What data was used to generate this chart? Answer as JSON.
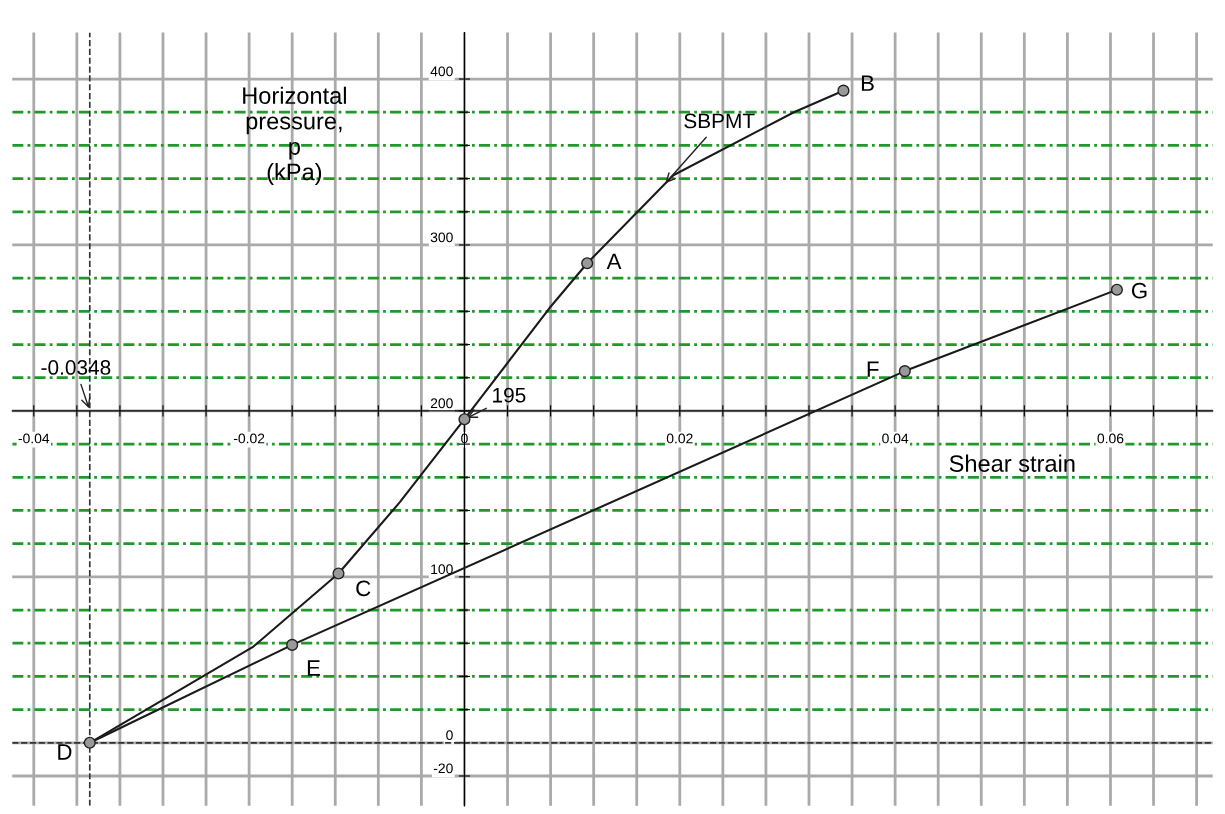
{
  "chart_data": {
    "type": "line",
    "xlabel": "Shear strain",
    "ylabel": "Horizontal\npressure,\np\n(kPa)",
    "xlim": [
      -0.042,
      0.0695
    ],
    "ylim": [
      -38,
      428
    ],
    "xticks": [
      {
        "value": -0.04,
        "label": "-0.04"
      },
      {
        "value": -0.036,
        "label": null
      },
      {
        "value": -0.032,
        "label": null
      },
      {
        "value": -0.028,
        "label": null
      },
      {
        "value": -0.024,
        "label": null
      },
      {
        "value": -0.02,
        "label": "-0.02"
      },
      {
        "value": -0.016,
        "label": null
      },
      {
        "value": -0.012,
        "label": null
      },
      {
        "value": -0.008,
        "label": null
      },
      {
        "value": -0.004,
        "label": null
      },
      {
        "value": 0,
        "label": "0"
      },
      {
        "value": 0.004,
        "label": null
      },
      {
        "value": 0.008,
        "label": null
      },
      {
        "value": 0.012,
        "label": null
      },
      {
        "value": 0.016,
        "label": null
      },
      {
        "value": 0.02,
        "label": "0.02"
      },
      {
        "value": 0.024,
        "label": null
      },
      {
        "value": 0.028,
        "label": null
      },
      {
        "value": 0.032,
        "label": null
      },
      {
        "value": 0.036,
        "label": null
      },
      {
        "value": 0.04,
        "label": "0.04"
      },
      {
        "value": 0.044,
        "label": null
      },
      {
        "value": 0.048,
        "label": null
      },
      {
        "value": 0.052,
        "label": null
      },
      {
        "value": 0.056,
        "label": null
      },
      {
        "value": 0.06,
        "label": "0.06"
      },
      {
        "value": 0.064,
        "label": null
      },
      {
        "value": 0.068,
        "label": null
      }
    ],
    "yticks": [
      {
        "value": -20,
        "label": "-20"
      },
      {
        "value": 0,
        "label": "0"
      },
      {
        "value": 20,
        "label": null
      },
      {
        "value": 40,
        "label": null
      },
      {
        "value": 60,
        "label": null
      },
      {
        "value": 80,
        "label": null
      },
      {
        "value": 100,
        "label": "100"
      },
      {
        "value": 120,
        "label": null
      },
      {
        "value": 140,
        "label": null
      },
      {
        "value": 160,
        "label": null
      },
      {
        "value": 180,
        "label": null
      },
      {
        "value": 200,
        "label": "200"
      },
      {
        "value": 220,
        "label": null
      },
      {
        "value": 240,
        "label": null
      },
      {
        "value": 260,
        "label": null
      },
      {
        "value": 280,
        "label": null
      },
      {
        "value": 300,
        "label": "300"
      },
      {
        "value": 320,
        "label": null
      },
      {
        "value": 340,
        "label": null
      },
      {
        "value": 360,
        "label": null
      },
      {
        "value": 380,
        "label": null
      },
      {
        "value": 400,
        "label": "400"
      }
    ],
    "grid": true,
    "series": [
      {
        "color": "#1a1a1a",
        "marker": "none",
        "x": [
          -0.0348,
          -0.0196,
          -0.0117,
          -0.006,
          0,
          0.0079,
          0.0114,
          0.0194,
          0.0306,
          0.0352
        ],
        "values": [
          0,
          58,
          102,
          145,
          195,
          262,
          289,
          342,
          380,
          393
        ]
      },
      {
        "color": "#1a1a1a",
        "marker": "none",
        "x": [
          -0.0348,
          -0.016,
          0.0409,
          0.0606
        ],
        "values": [
          0,
          59,
          224,
          273
        ]
      },
      {
        "type": "scatter",
        "color": "#999999",
        "marker": "circle",
        "x": [
          -0.0348,
          -0.0117,
          0,
          0.0114,
          0.0352,
          -0.016,
          0.0409,
          0.0606
        ],
        "values": [
          0,
          102,
          195,
          289,
          393,
          59,
          224,
          273
        ]
      }
    ],
    "ref_lines": [
      {
        "axis": "x",
        "value": -0.0348,
        "line_style": "dashed",
        "color": "#333333"
      },
      {
        "axis": "y",
        "value": 0,
        "line_style": "dashed",
        "color": "#333333"
      }
    ],
    "annotations": [
      {
        "text": "A",
        "x": 0.0114,
        "y": 289
      },
      {
        "text": "B",
        "x": 0.0352,
        "y": 393
      },
      {
        "text": "C",
        "x": -0.0117,
        "y": 102
      },
      {
        "text": "D",
        "x": -0.0348,
        "y": 0
      },
      {
        "text": "E",
        "x": -0.016,
        "y": 59
      },
      {
        "text": "F",
        "x": 0.0409,
        "y": 224
      },
      {
        "text": "G",
        "x": 0.0606,
        "y": 273
      },
      {
        "text": "195",
        "x": 0,
        "y": 195
      },
      {
        "text": "-0.0348",
        "x": -0.0348,
        "y": 200
      },
      {
        "text": "SBPMT",
        "x": 0.0185,
        "y": 336
      }
    ]
  }
}
